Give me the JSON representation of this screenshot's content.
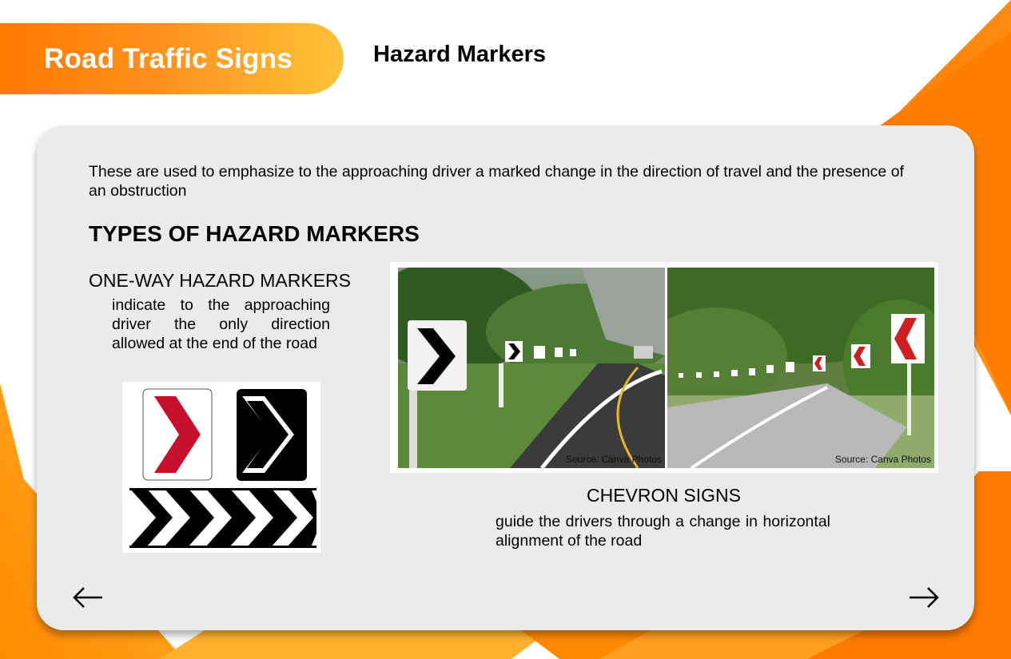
{
  "header": {
    "title": "Road Traffic Signs",
    "subtitle": "Hazard Markers"
  },
  "content": {
    "intro": "These are used to emphasize to the approaching driver a marked change in the direction of travel and the presence of an obstruction",
    "types_heading": "TYPES OF HAZARD MARKERS",
    "one_way": {
      "heading": "ONE-WAY HAZARD MARKERS",
      "description": "indicate to the approaching driver the only direction allowed at the end of the road"
    },
    "chevron": {
      "heading": "CHEVRON SIGNS",
      "description": "guide the drivers through a change in horizontal alignment of the road"
    },
    "photos": [
      {
        "caption": "Source: Canva Photos"
      },
      {
        "caption": "Source: Canva Photos"
      }
    ]
  },
  "navigation": {
    "prev_icon": "arrow-left-icon",
    "next_icon": "arrow-right-icon"
  },
  "colors": {
    "accent_orange": "#ff7a00",
    "accent_yellow": "#ffc23a",
    "card_bg": "#ebebeb",
    "marker_red": "#c8102e"
  }
}
